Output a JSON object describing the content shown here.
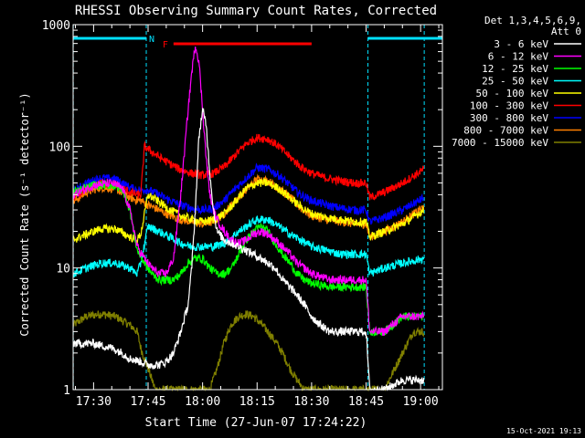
{
  "chart_data": {
    "type": "line",
    "title": "RHESSI Observing Summary Count Rates, Corrected",
    "xlabel": "Start Time (27-Jun-07 17:24:22)",
    "ylabel": "Corrected Count Rate (s⁻¹ detector⁻¹)",
    "x_ticks": [
      "17:30",
      "17:45",
      "18:00",
      "18:15",
      "18:30",
      "18:45",
      "19:00"
    ],
    "x_tick_minutes": [
      30,
      45,
      60,
      75,
      90,
      105,
      120
    ],
    "x_range_minutes": [
      24.37,
      126.0
    ],
    "y_scale": "log",
    "ylim": [
      1,
      1000
    ],
    "y_ticks": [
      "1",
      "10",
      "100",
      "1000"
    ],
    "y_tick_values": [
      1,
      10,
      100,
      1000
    ],
    "legend_header": [
      "Det 1,3,4,5,6,9,",
      "Att 0"
    ],
    "legend_position": "right",
    "timestamp": "15-Oct-2021 19:13",
    "flags": [
      {
        "label": "N",
        "color": "#00e0ff",
        "segments": [
          [
            24.4,
            44.5
          ],
          [
            105.5,
            126.0
          ]
        ]
      },
      {
        "label": "F",
        "color": "#ff0000",
        "segments": [
          [
            52.0,
            90.0
          ]
        ]
      }
    ],
    "night_boundaries_minutes": [
      24.4,
      44.5,
      105.5,
      121.0
    ],
    "series": [
      {
        "name": "3 - 6 keV",
        "color": "#ffffff",
        "points": [
          [
            24.4,
            2.4
          ],
          [
            30,
            2.4
          ],
          [
            35,
            2.2
          ],
          [
            38,
            2.0
          ],
          [
            40,
            1.8
          ],
          [
            43,
            1.7
          ],
          [
            45,
            1.6
          ],
          [
            48,
            1.6
          ],
          [
            50,
            1.7
          ],
          [
            52,
            2.0
          ],
          [
            54,
            3.0
          ],
          [
            56,
            5.0
          ],
          [
            57,
            10
          ],
          [
            58,
            30
          ],
          [
            59,
            120
          ],
          [
            60,
            200
          ],
          [
            61,
            150
          ],
          [
            62,
            60
          ],
          [
            63,
            30
          ],
          [
            64,
            20
          ],
          [
            66,
            17
          ],
          [
            68,
            16
          ],
          [
            70,
            15
          ],
          [
            72,
            14
          ],
          [
            74,
            13
          ],
          [
            76,
            12
          ],
          [
            78,
            11
          ],
          [
            80,
            10
          ],
          [
            82,
            8
          ],
          [
            84,
            7
          ],
          [
            86,
            6
          ],
          [
            88,
            5
          ],
          [
            90,
            4
          ],
          [
            92,
            3.5
          ],
          [
            95,
            3
          ],
          [
            100,
            3
          ],
          [
            105,
            3
          ],
          [
            106,
            1.0
          ],
          [
            110,
            1.0
          ],
          [
            115,
            1.2
          ],
          [
            121,
            1.2
          ]
        ]
      },
      {
        "name": "6 - 12 keV",
        "color": "#ff00ff",
        "points": [
          [
            24.4,
            40
          ],
          [
            30,
            48
          ],
          [
            35,
            50
          ],
          [
            38,
            45
          ],
          [
            40,
            30
          ],
          [
            42,
            15
          ],
          [
            44,
            12
          ],
          [
            46,
            10
          ],
          [
            48,
            9
          ],
          [
            50,
            9
          ],
          [
            52,
            12
          ],
          [
            54,
            40
          ],
          [
            56,
            200
          ],
          [
            57,
            400
          ],
          [
            58,
            680
          ],
          [
            59,
            500
          ],
          [
            60,
            200
          ],
          [
            61,
            80
          ],
          [
            62,
            40
          ],
          [
            63,
            30
          ],
          [
            64,
            25
          ],
          [
            66,
            20
          ],
          [
            68,
            17
          ],
          [
            70,
            16
          ],
          [
            72,
            17
          ],
          [
            74,
            19
          ],
          [
            76,
            20
          ],
          [
            78,
            19
          ],
          [
            80,
            17
          ],
          [
            82,
            15
          ],
          [
            84,
            13
          ],
          [
            86,
            11
          ],
          [
            88,
            10
          ],
          [
            90,
            9
          ],
          [
            95,
            8
          ],
          [
            100,
            8
          ],
          [
            105,
            8
          ],
          [
            106,
            3
          ],
          [
            110,
            3
          ],
          [
            115,
            4
          ],
          [
            121,
            4
          ]
        ]
      },
      {
        "name": "12 - 25 keV",
        "color": "#00ff00",
        "points": [
          [
            24.4,
            42
          ],
          [
            30,
            48
          ],
          [
            35,
            48
          ],
          [
            38,
            44
          ],
          [
            40,
            30
          ],
          [
            42,
            14
          ],
          [
            44,
            11
          ],
          [
            46,
            9
          ],
          [
            48,
            8
          ],
          [
            50,
            8
          ],
          [
            52,
            8
          ],
          [
            54,
            9
          ],
          [
            56,
            11
          ],
          [
            58,
            12
          ],
          [
            60,
            12
          ],
          [
            62,
            10
          ],
          [
            64,
            9
          ],
          [
            66,
            9
          ],
          [
            68,
            10
          ],
          [
            70,
            13
          ],
          [
            72,
            17
          ],
          [
            74,
            20
          ],
          [
            76,
            22
          ],
          [
            78,
            20
          ],
          [
            80,
            16
          ],
          [
            82,
            13
          ],
          [
            84,
            11
          ],
          [
            86,
            9
          ],
          [
            88,
            8
          ],
          [
            90,
            7.5
          ],
          [
            95,
            7
          ],
          [
            100,
            7
          ],
          [
            105,
            7
          ],
          [
            106,
            3
          ],
          [
            110,
            3
          ],
          [
            115,
            4
          ],
          [
            121,
            4
          ]
        ]
      },
      {
        "name": "25 - 50 keV",
        "color": "#00ffff",
        "points": [
          [
            24.4,
            9
          ],
          [
            28,
            10
          ],
          [
            32,
            11
          ],
          [
            36,
            11
          ],
          [
            40,
            10
          ],
          [
            42,
            9
          ],
          [
            43,
            11
          ],
          [
            45,
            22
          ],
          [
            48,
            20
          ],
          [
            51,
            18
          ],
          [
            54,
            16
          ],
          [
            57,
            15
          ],
          [
            60,
            15
          ],
          [
            63,
            15
          ],
          [
            66,
            16
          ],
          [
            69,
            19
          ],
          [
            72,
            22
          ],
          [
            75,
            25
          ],
          [
            78,
            25
          ],
          [
            81,
            22
          ],
          [
            84,
            19
          ],
          [
            87,
            17
          ],
          [
            90,
            15
          ],
          [
            94,
            14
          ],
          [
            98,
            13
          ],
          [
            102,
            13
          ],
          [
            105,
            13
          ],
          [
            106,
            9
          ],
          [
            110,
            10
          ],
          [
            115,
            11
          ],
          [
            121,
            12
          ]
        ]
      },
      {
        "name": "50 - 100 keV",
        "color": "#ffff00",
        "points": [
          [
            24.4,
            17
          ],
          [
            28,
            19
          ],
          [
            32,
            21
          ],
          [
            36,
            21
          ],
          [
            40,
            18
          ],
          [
            42,
            17
          ],
          [
            43,
            19
          ],
          [
            45,
            40
          ],
          [
            48,
            35
          ],
          [
            51,
            30
          ],
          [
            54,
            27
          ],
          [
            57,
            25
          ],
          [
            60,
            24
          ],
          [
            63,
            25
          ],
          [
            66,
            28
          ],
          [
            69,
            35
          ],
          [
            72,
            45
          ],
          [
            75,
            50
          ],
          [
            78,
            50
          ],
          [
            81,
            45
          ],
          [
            84,
            38
          ],
          [
            87,
            32
          ],
          [
            90,
            28
          ],
          [
            94,
            26
          ],
          [
            98,
            25
          ],
          [
            102,
            24
          ],
          [
            105,
            24
          ],
          [
            106,
            18
          ],
          [
            110,
            20
          ],
          [
            115,
            23
          ],
          [
            121,
            30
          ]
        ]
      },
      {
        "name": "100 - 300 keV",
        "color": "#ff0000",
        "points": [
          [
            24.4,
            38
          ],
          [
            28,
            44
          ],
          [
            32,
            50
          ],
          [
            36,
            48
          ],
          [
            40,
            42
          ],
          [
            42,
            40
          ],
          [
            43,
            40
          ],
          [
            44,
            100
          ],
          [
            46,
            90
          ],
          [
            48,
            82
          ],
          [
            51,
            72
          ],
          [
            54,
            64
          ],
          [
            57,
            60
          ],
          [
            60,
            58
          ],
          [
            63,
            60
          ],
          [
            66,
            68
          ],
          [
            69,
            85
          ],
          [
            72,
            105
          ],
          [
            75,
            118
          ],
          [
            78,
            115
          ],
          [
            81,
            100
          ],
          [
            84,
            82
          ],
          [
            87,
            68
          ],
          [
            90,
            60
          ],
          [
            94,
            55
          ],
          [
            98,
            52
          ],
          [
            102,
            50
          ],
          [
            105,
            50
          ],
          [
            106,
            38
          ],
          [
            110,
            42
          ],
          [
            115,
            50
          ],
          [
            121,
            65
          ]
        ]
      },
      {
        "name": "300 - 800 keV",
        "color": "#0000ff",
        "points": [
          [
            24.4,
            42
          ],
          [
            28,
            50
          ],
          [
            32,
            55
          ],
          [
            36,
            54
          ],
          [
            40,
            46
          ],
          [
            42,
            44
          ],
          [
            43,
            44
          ],
          [
            45,
            44
          ],
          [
            48,
            40
          ],
          [
            51,
            36
          ],
          [
            54,
            33
          ],
          [
            57,
            31
          ],
          [
            60,
            30
          ],
          [
            63,
            31
          ],
          [
            66,
            36
          ],
          [
            69,
            45
          ],
          [
            72,
            55
          ],
          [
            75,
            67
          ],
          [
            78,
            65
          ],
          [
            81,
            58
          ],
          [
            84,
            48
          ],
          [
            87,
            40
          ],
          [
            90,
            36
          ],
          [
            94,
            33
          ],
          [
            98,
            31
          ],
          [
            102,
            30
          ],
          [
            105,
            30
          ],
          [
            106,
            24
          ],
          [
            110,
            26
          ],
          [
            115,
            30
          ],
          [
            121,
            38
          ]
        ]
      },
      {
        "name": "800 - 7000 keV",
        "color": "#ff8000",
        "points": [
          [
            24.4,
            35
          ],
          [
            28,
            42
          ],
          [
            32,
            46
          ],
          [
            36,
            45
          ],
          [
            40,
            38
          ],
          [
            42,
            36
          ],
          [
            43,
            36
          ],
          [
            45,
            33
          ],
          [
            48,
            30
          ],
          [
            51,
            27
          ],
          [
            54,
            25
          ],
          [
            57,
            24
          ],
          [
            60,
            23
          ],
          [
            63,
            24
          ],
          [
            66,
            28
          ],
          [
            69,
            36
          ],
          [
            72,
            44
          ],
          [
            75,
            54
          ],
          [
            78,
            52
          ],
          [
            81,
            45
          ],
          [
            84,
            38
          ],
          [
            87,
            31
          ],
          [
            90,
            27
          ],
          [
            94,
            25
          ],
          [
            98,
            24
          ],
          [
            102,
            23
          ],
          [
            105,
            23
          ],
          [
            106,
            18
          ],
          [
            110,
            20
          ],
          [
            115,
            24
          ],
          [
            121,
            32
          ]
        ]
      },
      {
        "name": "7000 - 15000 keV",
        "color": "#808000",
        "points": [
          [
            24.4,
            3.4
          ],
          [
            28,
            4.0
          ],
          [
            32,
            4.2
          ],
          [
            36,
            4.0
          ],
          [
            40,
            3.4
          ],
          [
            42,
            3.0
          ],
          [
            43,
            2.2
          ],
          [
            44,
            1.8
          ],
          [
            45,
            1.5
          ],
          [
            47,
            1.0
          ],
          [
            52,
            1.0
          ],
          [
            58,
            1.0
          ],
          [
            62,
            1.0
          ],
          [
            64,
            1.5
          ],
          [
            66,
            2.5
          ],
          [
            68,
            3.5
          ],
          [
            70,
            4.0
          ],
          [
            72,
            4.2
          ],
          [
            74,
            4.0
          ],
          [
            76,
            3.5
          ],
          [
            78,
            3.0
          ],
          [
            80,
            2.5
          ],
          [
            82,
            2.0
          ],
          [
            84,
            1.5
          ],
          [
            86,
            1.2
          ],
          [
            88,
            1.0
          ],
          [
            95,
            1.0
          ],
          [
            105,
            1.0
          ],
          [
            110,
            1.0
          ],
          [
            115,
            2.0
          ],
          [
            118,
            3.0
          ],
          [
            121,
            3.0
          ]
        ]
      }
    ]
  }
}
